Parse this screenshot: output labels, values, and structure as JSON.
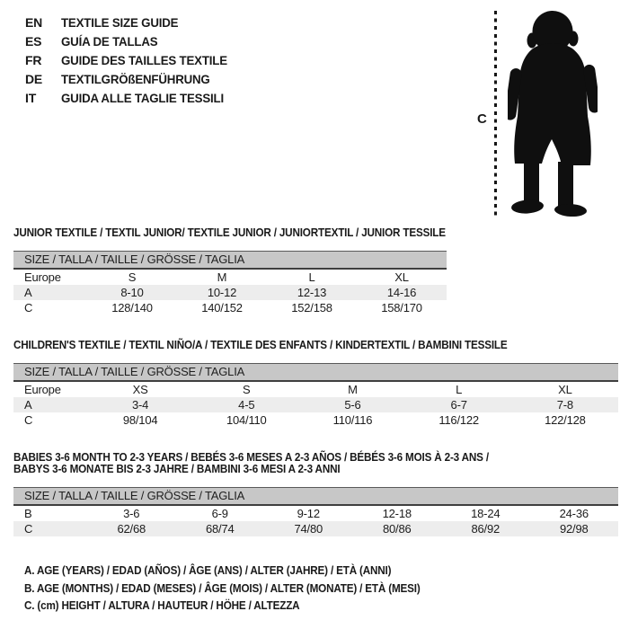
{
  "colors": {
    "background": "#ffffff",
    "text": "#1a1a1a",
    "table_header_bg": "#c7c7c7",
    "row_shaded_bg": "#ededed",
    "rule_dark": "#3f3f3f",
    "silhouette": "#0f0f0f"
  },
  "languages": [
    {
      "code": "EN",
      "label": "TEXTILE SIZE GUIDE"
    },
    {
      "code": "ES",
      "label": "GUÍA DE TALLAS"
    },
    {
      "code": "FR",
      "label": "GUIDE DES TAILLES TEXTILE"
    },
    {
      "code": "DE",
      "label": "TEXTILGRÖßENFÜHRUNG"
    },
    {
      "code": "IT",
      "label": "GUIDA ALLE TAGLIE TESSILI"
    }
  ],
  "figure": {
    "measure_label": "C",
    "image_name": "toddler-silhouette"
  },
  "tables": [
    {
      "id": "junior",
      "title_lines": [
        "JUNIOR TEXTILE / TEXTIL JUNIOR/ TEXTILE JUNIOR / JUNIORTEXTIL / JUNIOR TESSILE"
      ],
      "size_header": "SIZE / TALLA / TAILLE / GRÖSSE / TAGLIA",
      "rows": [
        {
          "label": "Europe",
          "shaded": false,
          "values": [
            "S",
            "M",
            "L",
            "XL"
          ]
        },
        {
          "label": "A",
          "shaded": true,
          "values": [
            "8-10",
            "10-12",
            "12-13",
            "14-16"
          ]
        },
        {
          "label": "C",
          "shaded": false,
          "values": [
            "128/140",
            "140/152",
            "152/158",
            "158/170"
          ]
        }
      ]
    },
    {
      "id": "children",
      "title_lines": [
        "CHILDREN'S TEXTILE / TEXTIL NIÑO/A / TEXTILE DES ENFANTS / KINDERTEXTIL / BAMBINI TESSILE"
      ],
      "size_header": "SIZE / TALLA / TAILLE / GRÖSSE / TAGLIA",
      "rows": [
        {
          "label": "Europe",
          "shaded": false,
          "values": [
            "XS",
            "S",
            "M",
            "L",
            "XL"
          ]
        },
        {
          "label": "A",
          "shaded": true,
          "values": [
            "3-4",
            "4-5",
            "5-6",
            "6-7",
            "7-8"
          ]
        },
        {
          "label": "C",
          "shaded": false,
          "values": [
            "98/104",
            "104/110",
            "110/116",
            "116/122",
            "122/128"
          ]
        }
      ]
    },
    {
      "id": "babies",
      "title_lines": [
        "BABIES 3-6 MONTH TO 2-3 YEARS / BEBÉS 3-6 MESES A 2-3 AÑOS / BÉBÉS 3-6 MOIS À 2-3 ANS /",
        "BABYS 3-6 MONATE BIS 2-3 JAHRE / BAMBINI 3-6 MESI A 2-3 ANNI"
      ],
      "size_header": "SIZE / TALLA / TAILLE / GRÖSSE / TAGLIA",
      "rows": [
        {
          "label": "B",
          "shaded": false,
          "values": [
            "3-6",
            "6-9",
            "9-12",
            "12-18",
            "18-24",
            "24-36"
          ]
        },
        {
          "label": "C",
          "shaded": true,
          "values": [
            "62/68",
            "68/74",
            "74/80",
            "80/86",
            "86/92",
            "92/98"
          ]
        }
      ]
    }
  ],
  "legend": [
    "A. AGE (YEARS) / EDAD (AÑOS) / ÂGE (ANS) / ALTER (JAHRE) / ETÀ (ANNI)",
    "B. AGE (MONTHS) / EDAD (MESES) / ÂGE (MOIS) / ALTER (MONATE) / ETÀ (MESI)",
    "C. (cm) HEIGHT / ALTURA / HAUTEUR / HÖHE / ALTEZZA"
  ]
}
